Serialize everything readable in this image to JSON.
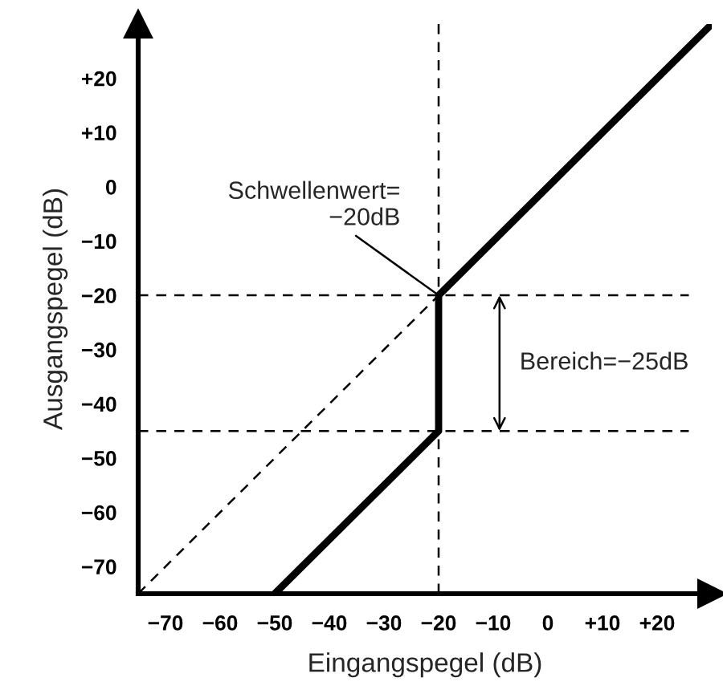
{
  "chart_data": {
    "type": "line",
    "xlabel": "Eingangspegel (dB)",
    "ylabel": "Ausgangspegel (dB)",
    "xlim": [
      -75,
      30
    ],
    "ylim": [
      -75,
      30
    ],
    "xticks": [
      {
        "value": -70,
        "label": "−70"
      },
      {
        "value": -60,
        "label": "−60"
      },
      {
        "value": -50,
        "label": "−50"
      },
      {
        "value": -40,
        "label": "−40"
      },
      {
        "value": -30,
        "label": "−30"
      },
      {
        "value": -20,
        "label": "−20"
      },
      {
        "value": -10,
        "label": "−10"
      },
      0,
      {
        "value": 10,
        "label": "+10"
      },
      {
        "value": 20,
        "label": "+20"
      }
    ],
    "yticks": [
      {
        "value": -70,
        "label": "−70"
      },
      {
        "value": -60,
        "label": "−60"
      },
      {
        "value": -50,
        "label": "−50"
      },
      {
        "value": -40,
        "label": "−40"
      },
      {
        "value": -30,
        "label": "−30"
      },
      {
        "value": -20,
        "label": "−20"
      },
      {
        "value": -10,
        "label": "−10"
      },
      0,
      {
        "value": 10,
        "label": "+10"
      },
      {
        "value": 20,
        "label": "+20"
      }
    ],
    "series": [
      {
        "color": "#000000",
        "line_style": "dashed",
        "x": [
          -75,
          -20
        ],
        "values": [
          -75,
          -20
        ]
      },
      {
        "color": "#000000",
        "line_style": "solid",
        "x": [
          -50,
          -20,
          -20,
          30
        ],
        "values": [
          -75,
          -45,
          -20,
          30
        ]
      }
    ],
    "ref_lines": [
      {
        "axis": "x",
        "value": -20,
        "line_style": "dashed"
      },
      {
        "axis": "y",
        "value": -20,
        "line_style": "dashed"
      },
      {
        "axis": "y",
        "value": -45,
        "line_style": "dashed"
      }
    ],
    "annotations": [
      {
        "text": "Schwellenwert=\n−20dB",
        "x": -20,
        "y": -20
      },
      "Bereich=−25dB"
    ],
    "grid": false,
    "marker": "none"
  }
}
